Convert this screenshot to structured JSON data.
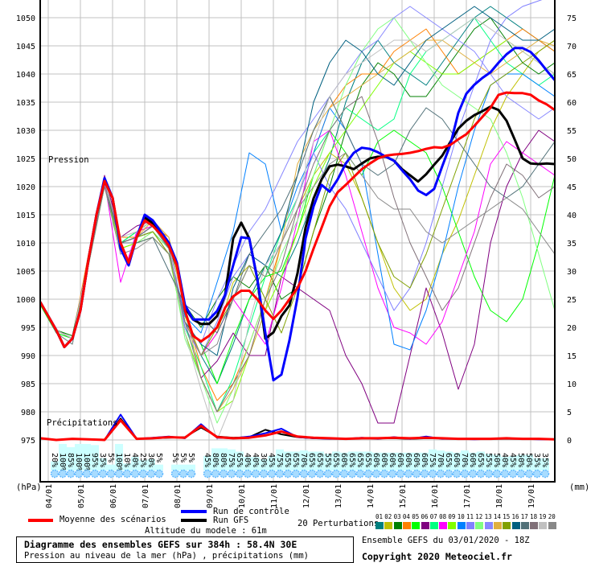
{
  "chart_data": {
    "type": "line",
    "title": "Diagramme des ensembles GEFS sur 384h : 58.4N 30E",
    "subtitle": "Pression au niveau de la mer (hPa) , précipitations (mm)",
    "run_info": "Ensemble GEFS du 03/01/2020 - 18Z",
    "copyright": "Copyright 2020 Meteociel.fr",
    "altitude": "Altitude du modele : 61m",
    "ylabel_left": "(hPa)",
    "ylabel_right": "(mm)",
    "pressure_label": "Pression",
    "precip_label": "Précipitations",
    "ylim_left": [
      975,
      1050
    ],
    "ylim_right": [
      0,
      75
    ],
    "yticks_left": [
      975,
      980,
      985,
      990,
      995,
      1000,
      1005,
      1010,
      1015,
      1020,
      1025,
      1030,
      1035,
      1040,
      1045,
      1050
    ],
    "yticks_right": [
      0,
      5,
      10,
      15,
      20,
      25,
      30,
      35,
      40,
      45,
      50,
      55,
      60,
      65,
      70,
      75
    ],
    "xticks": [
      "04/01",
      "05/01",
      "06/01",
      "07/01",
      "08/01",
      "09/01",
      "10/01",
      "11/01",
      "12/01",
      "13/01",
      "14/01",
      "15/01",
      "16/01",
      "17/01",
      "18/01",
      "19/01"
    ],
    "xlim_hours": [
      0,
      384
    ],
    "grid": true,
    "legend": {
      "mean": "Moyenne des scénarios",
      "control": "Run de contrôle",
      "gfs": "Run GFS",
      "perturbations": "20 Perturbations",
      "member_ids": [
        "01",
        "02",
        "03",
        "04",
        "05",
        "06",
        "07",
        "08",
        "09",
        "10",
        "11",
        "12",
        "13",
        "14",
        "15",
        "16",
        "17",
        "18",
        "19",
        "20"
      ]
    },
    "colors": {
      "mean": "#ff0000",
      "control": "#0000ff",
      "gfs": "#000000",
      "grid": "#c0c0c0",
      "precip_bar": "#ccffff",
      "precip_text": "#0000ff",
      "snow": "#66bbff",
      "members": [
        "#008080",
        "#c0c000",
        "#008000",
        "#ff8000",
        "#00ff00",
        "#800080",
        "#00ff80",
        "#ff00ff",
        "#80ff00",
        "#0080ff",
        "#8080ff",
        "#80ff80",
        "#8888ff",
        "#e0b040",
        "#80a000",
        "#006080",
        "#507078",
        "#807078",
        "#c0c0c0",
        "#888888"
      ]
    },
    "step_hours_main": 6,
    "mean_pressure": [
      999.5,
      997,
      994.5,
      991.5,
      993,
      998,
      1007,
      1015,
      1021,
      1018,
      1010,
      1006.5,
      1011,
      1014,
      1013,
      1011.5,
      1009.5,
      1006,
      998,
      993.5,
      992.5,
      993.5,
      995,
      998.5,
      1000.5,
      1001.5,
      1001.5,
      1000,
      998,
      996.5,
      998,
      1000,
      1002,
      1005,
      1009,
      1012.7,
      1016.5,
      1019,
      1020.3,
      1021.7,
      1023.1,
      1024.1,
      1025,
      1025.5,
      1025.7,
      1025.8,
      1026,
      1026.3,
      1026.7,
      1027,
      1026.9,
      1027.4,
      1028.4,
      1029.3,
      1030.8,
      1032.4,
      1034,
      1036.3,
      1036.7,
      1036.6,
      1036.6,
      1036.3,
      1035.3,
      1034.6,
      1033.6
    ],
    "control_pressure": [
      999.5,
      997,
      994.5,
      991.5,
      993,
      998,
      1007,
      1015,
      1021.5,
      1018,
      1009,
      1006,
      1011,
      1015,
      1014,
      1012,
      1010,
      1006.5,
      999,
      996.4,
      996.4,
      996.4,
      997.9,
      1000.8,
      1006,
      1011,
      1010.8,
      1003.6,
      994,
      985.6,
      986.6,
      992.7,
      1000.3,
      1010.8,
      1016.5,
      1020.3,
      1019.1,
      1021.3,
      1024.1,
      1026,
      1026.9,
      1026.7,
      1026.1,
      1025.3,
      1024.6,
      1022.9,
      1021.3,
      1019.3,
      1018.5,
      1019.6,
      1023.6,
      1027.4,
      1033.1,
      1036.5,
      1038.1,
      1039.3,
      1040.3,
      1042,
      1043.5,
      1044.6,
      1044.6,
      1043.9,
      1042.4,
      1040.6,
      1038.9
    ],
    "gfs_pressure": [
      999.5,
      997,
      994.5,
      991.5,
      993,
      998,
      1007,
      1015,
      1021,
      1018,
      1009.5,
      1006.5,
      1011,
      1014.5,
      1013.5,
      1012,
      1010,
      1006,
      998.5,
      996.4,
      995.6,
      995.6,
      997,
      1000.8,
      1010.8,
      1013.6,
      1010.8,
      1003.6,
      993,
      994.1,
      997,
      998.9,
      1004.6,
      1012.7,
      1017.9,
      1021.3,
      1023.6,
      1023.9,
      1023.6,
      1023.1,
      1024.1,
      1025,
      1025.3,
      1025.3,
      1024.6,
      1023.1,
      1022,
      1020.9,
      1022.2,
      1023.9,
      1025.5,
      1027.9,
      1030.3,
      1031.7,
      1032.7,
      1033.4,
      1034.2,
      1033.6,
      1031.7,
      1028.4,
      1025,
      1024.1,
      1024,
      1024.1,
      1024
    ],
    "step_hours_members": 12,
    "members_pressure": [
      [
        999.5,
        994,
        992,
        1007,
        1021,
        1010,
        1011,
        1012,
        1009,
        996,
        990,
        985,
        992,
        1000,
        1006,
        1004,
        1010,
        1018,
        1025,
        1035,
        1042,
        1046,
        1042,
        1040,
        1038,
        1042,
        1046,
        1050,
        1052,
        1050,
        1048,
        1046,
        1044
      ],
      [
        999.5,
        994.5,
        993,
        1007,
        1020,
        1009,
        1010,
        1012,
        1008,
        997,
        990,
        994,
        1003,
        1006,
        1004,
        1010,
        1016,
        1022,
        1026,
        1024,
        1018,
        1010,
        1002,
        998,
        1000,
        1008,
        1014,
        1022,
        1030,
        1036,
        1040,
        1044,
        1046
      ],
      [
        999.5,
        994.5,
        993.5,
        1007,
        1021,
        1010,
        1012,
        1014,
        1010,
        999,
        995,
        1000,
        1004,
        1002,
        1006,
        1000,
        1002,
        1012,
        1020,
        1030,
        1038,
        1042,
        1040,
        1036,
        1036,
        1040,
        1044,
        1048,
        1050,
        1046,
        1042,
        1040,
        1042
      ],
      [
        999.5,
        994.5,
        993,
        1008,
        1021,
        1011,
        1011,
        1013,
        1011,
        998,
        988,
        982,
        985,
        992,
        1000,
        1010,
        1018,
        1026,
        1034,
        1038,
        1040,
        1040,
        1044,
        1046,
        1048,
        1044,
        1040,
        1042,
        1044,
        1046,
        1048,
        1046,
        1044
      ],
      [
        999,
        994,
        993,
        1007,
        1021,
        1010,
        1012,
        1013,
        1009,
        996,
        992,
        985,
        993,
        1000,
        1004,
        1005,
        1012,
        1022,
        1030,
        1026,
        1022,
        1028,
        1030,
        1028,
        1026,
        1020,
        1012,
        1004,
        998,
        996,
        1000,
        1010,
        1022
      ],
      [
        999.5,
        994.5,
        993,
        1007,
        1022,
        1011,
        1013,
        1014,
        1010,
        994,
        986,
        989,
        994,
        990,
        990,
        1004,
        1002,
        1000,
        998,
        990,
        985,
        978,
        978,
        990,
        1002,
        994,
        984,
        992,
        1010,
        1020,
        1026,
        1030,
        1028
      ],
      [
        999.5,
        994.5,
        993,
        1007,
        1021,
        1010,
        1012,
        1014,
        1009,
        995,
        988,
        980,
        986,
        995,
        1004,
        1012,
        1018,
        1026,
        1030,
        1034,
        1032,
        1030,
        1032,
        1040,
        1044,
        1046,
        1048,
        1050,
        1046,
        1042,
        1040,
        1038,
        1040
      ],
      [
        999.5,
        994.5,
        993,
        1007,
        1021,
        1003,
        1012,
        1013,
        1009,
        996,
        990,
        994,
        1000,
        996,
        992,
        1002,
        1014,
        1028,
        1030,
        1022,
        1012,
        1002,
        995,
        994,
        992,
        996,
        1004,
        1012,
        1024,
        1028,
        1026,
        1024,
        1022
      ],
      [
        999.5,
        994.5,
        993,
        1006,
        1020,
        1009,
        1010,
        1011,
        1008,
        994,
        986,
        980,
        982,
        990,
        998,
        1004,
        1012,
        1020,
        1026,
        1030,
        1034,
        1038,
        1042,
        1044,
        1042,
        1040,
        1040,
        1042,
        1044,
        1046,
        1044,
        1042,
        1040
      ],
      [
        999.5,
        994.5,
        993,
        1007,
        1021,
        1010,
        1011,
        1013,
        1009,
        997,
        994,
        1003,
        1012,
        1026,
        1024,
        1012,
        1020,
        1026,
        1034,
        1030,
        1024,
        1008,
        992,
        991,
        998,
        1008,
        1020,
        1030,
        1038,
        1040,
        1040,
        1038,
        1036
      ],
      [
        999.5,
        994.5,
        993,
        1007,
        1021,
        1010,
        1011,
        1013,
        1010,
        995,
        990,
        996,
        1004,
        1008,
        1006,
        1010,
        1018,
        1026,
        1020,
        1016,
        1010,
        1004,
        998,
        1002,
        1010,
        1020,
        1030,
        1038,
        1046,
        1050,
        1052,
        1053,
        1054
      ],
      [
        999.5,
        994.5,
        993,
        1007,
        1021,
        1010,
        1010,
        1012,
        1009,
        993,
        986,
        978,
        984,
        992,
        1000,
        1008,
        1014,
        1022,
        1030,
        1038,
        1044,
        1048,
        1050,
        1046,
        1042,
        1038,
        1036,
        1034,
        1032,
        1026,
        1018,
        1008,
        998
      ],
      [
        999.5,
        994.5,
        993,
        1007,
        1021,
        1010,
        1011,
        1013,
        1010,
        996,
        992,
        1000,
        1006,
        1012,
        1016,
        1022,
        1028,
        1032,
        1036,
        1040,
        1044,
        1046,
        1050,
        1052,
        1050,
        1048,
        1046,
        1044,
        1040,
        1036,
        1034,
        1032,
        1034
      ],
      [
        999.5,
        994.5,
        993,
        1007,
        1021,
        1010,
        1011,
        1014,
        1011,
        998,
        986,
        980,
        984,
        990,
        998,
        1010,
        1024,
        1030,
        1034,
        1036,
        1038,
        1040,
        1042,
        1044,
        1046,
        1046,
        1044,
        1042,
        1040,
        1042,
        1044,
        1046,
        1045
      ],
      [
        999.5,
        994.5,
        993,
        1007,
        1021,
        1010,
        1011,
        1012,
        1008,
        996,
        990,
        995,
        1000,
        1006,
        1000,
        994,
        1002,
        1012,
        1022,
        1026,
        1018,
        1010,
        1004,
        1002,
        1008,
        1016,
        1024,
        1032,
        1038,
        1040,
        1042,
        1044,
        1046
      ],
      [
        999.5,
        994.5,
        993,
        1007,
        1021,
        1010,
        1011,
        1013,
        1009,
        996,
        992,
        990,
        1002,
        1008,
        1006,
        1012,
        1022,
        1035,
        1042,
        1046,
        1044,
        1040,
        1038,
        1042,
        1046,
        1048,
        1050,
        1052,
        1050,
        1048,
        1046,
        1046,
        1048
      ],
      [
        999.5,
        994.5,
        993,
        1007,
        1020,
        1010,
        1010,
        1011,
        1005,
        999,
        997,
        994,
        1000,
        1008,
        1012,
        1016,
        1022,
        1030,
        1036,
        1030,
        1024,
        1022,
        1024,
        1030,
        1034,
        1032,
        1028,
        1024,
        1020,
        1018,
        1020,
        1024,
        1028
      ],
      [
        999.5,
        994.5,
        993,
        1007,
        1021,
        1010,
        1011,
        1013,
        1009,
        996,
        986,
        980,
        985,
        990,
        1000,
        1006,
        1016,
        1024,
        1030,
        1034,
        1036,
        1028,
        1018,
        1010,
        1004,
        998,
        1002,
        1010,
        1018,
        1024,
        1022,
        1018,
        1020
      ],
      [
        999.5,
        994.5,
        993,
        1007,
        1021,
        1011,
        1012,
        1014,
        1010,
        994,
        984,
        975,
        982,
        996,
        1006,
        1010,
        1018,
        1028,
        1036,
        1040,
        1042,
        1044,
        1046,
        1046,
        1044,
        1046,
        1048,
        1050,
        1048,
        1046,
        1044,
        1042,
        1040
      ],
      [
        999.5,
        994,
        992,
        1006,
        1020,
        1008,
        1009,
        1011,
        1008,
        996,
        990,
        992,
        1000,
        1006,
        1004,
        1010,
        1016,
        1020,
        1024,
        1026,
        1022,
        1018,
        1016,
        1016,
        1012,
        1010,
        1012,
        1014,
        1016,
        1018,
        1016,
        1012,
        1008
      ]
    ],
    "step_hours_precip": 12,
    "mean_precip": [
      0.3,
      0,
      0.2,
      0.1,
      0,
      3.5,
      0.2,
      0.3,
      0.5,
      0.4,
      2.5,
      0.5,
      0.3,
      0.4,
      0.8,
      1.5,
      0.6,
      0.4,
      0.3,
      0.2,
      0.3,
      0.3,
      0.4,
      0.3,
      0.4,
      0.3,
      0.2,
      0.2,
      0.2,
      0.3,
      0.2,
      0.2,
      0.1
    ],
    "control_precip": [
      0.3,
      0,
      0.2,
      0.1,
      0,
      4.5,
      0.2,
      0.4,
      0.6,
      0.3,
      2.8,
      0.4,
      0.3,
      0.6,
      1.2,
      2.0,
      0.5,
      0.3,
      0.2,
      0.2,
      0.4,
      0.2,
      0.5,
      0.2,
      0.6,
      0.2,
      0.2,
      0.1,
      0.2,
      0.3,
      0.2,
      0.1,
      0.1
    ],
    "gfs_precip": [
      0.3,
      0,
      0.2,
      0.1,
      0,
      3.8,
      0.2,
      0.3,
      0.4,
      0.5,
      2.2,
      0.6,
      0.4,
      0.5,
      1.8,
      1.0,
      0.5,
      0.3,
      0.3,
      0.2,
      0.3,
      0.3,
      0.3,
      0.2,
      0.3,
      0.3,
      0.2,
      0.2,
      0.2,
      0.2,
      0.2,
      0.2,
      0.1
    ],
    "precip_probability_pct": [
      20,
      100,
      85,
      100,
      100,
      95,
      35,
      5,
      100,
      10,
      40,
      25,
      30,
      5,
      null,
      5,
      5,
      5,
      null,
      45,
      80,
      80,
      75,
      65,
      40,
      40,
      30,
      45,
      75,
      65,
      65,
      70,
      65,
      65,
      55,
      65,
      60,
      65,
      65,
      65,
      60,
      60,
      60,
      60,
      60,
      60,
      60,
      75,
      70,
      65,
      60,
      70,
      60,
      65,
      55,
      50,
      40,
      45,
      50,
      50,
      35,
      35
    ]
  }
}
